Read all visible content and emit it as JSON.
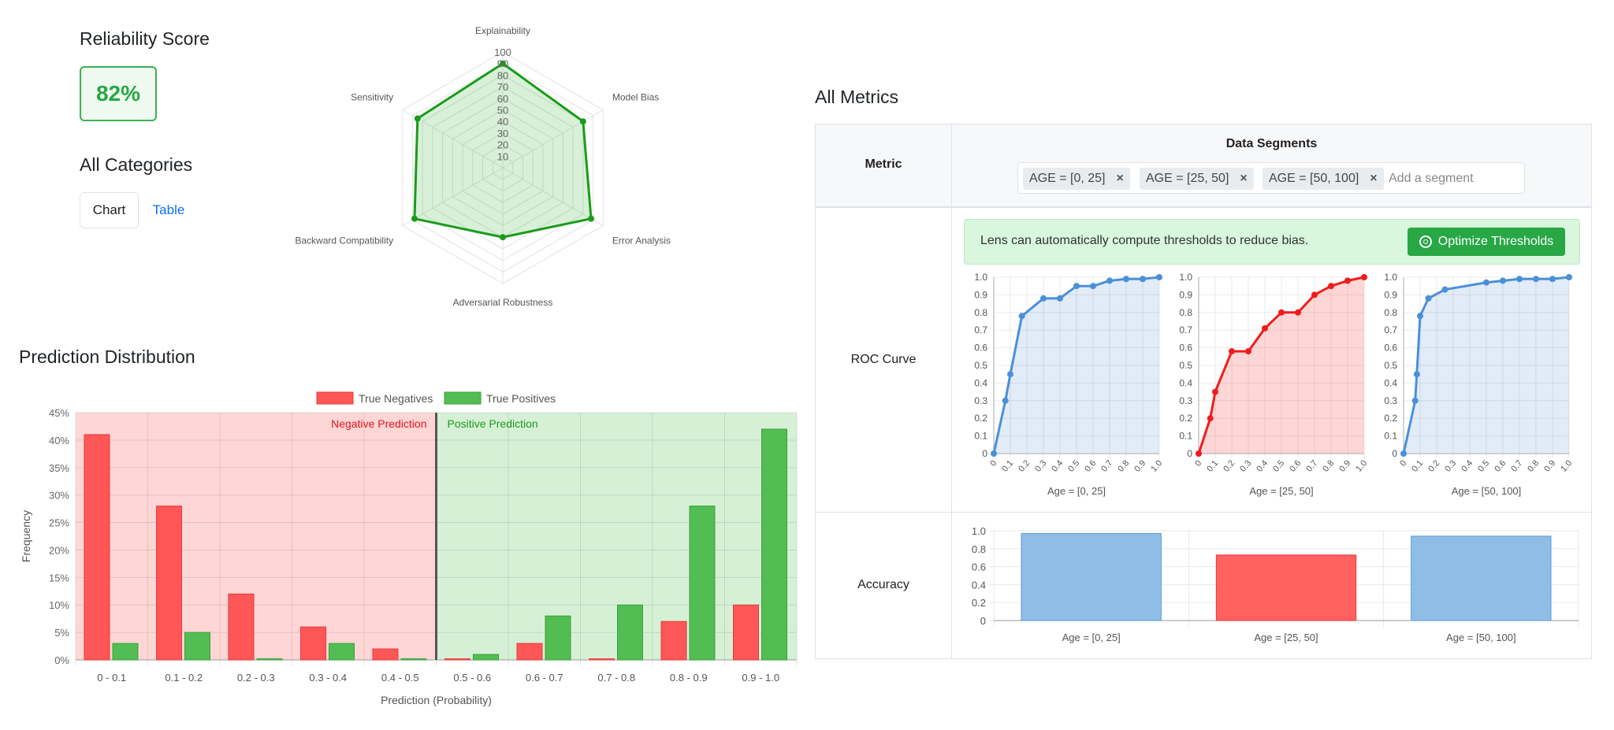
{
  "reliability": {
    "title": "Reliability Score",
    "score": "82%",
    "score_color": "#28a745"
  },
  "categories": {
    "title": "All Categories",
    "tabs": [
      {
        "label": "Chart",
        "active": true
      },
      {
        "label": "Table",
        "active": false
      }
    ]
  },
  "prediction_distribution": {
    "title": "Prediction Distribution"
  },
  "all_metrics": {
    "title": "All Metrics",
    "col_metric": "Metric",
    "col_segments": "Data Segments",
    "segments": [
      "AGE = [0, 25]",
      "AGE = [25, 50]",
      "AGE = [50, 100]"
    ],
    "segment_placeholder": "Add a segment",
    "alert_text": "Lens can automatically compute thresholds to reduce bias.",
    "optimize_label": "Optimize Thresholds",
    "rows": [
      {
        "label": "ROC Curve"
      },
      {
        "label": "Accuracy"
      }
    ]
  },
  "chart_data": [
    {
      "type": "radar",
      "categories": [
        "Explainability",
        "Model Bias",
        "Error Analysis",
        "Adversarial Robustness",
        "Backward Compatibility",
        "Sensitivity"
      ],
      "values": [
        90,
        80,
        88,
        60,
        88,
        85
      ],
      "rlim": [
        0,
        100
      ],
      "ticks": [
        10,
        20,
        30,
        40,
        50,
        60,
        70,
        80,
        90,
        100
      ],
      "color": "#1a9c1a"
    },
    {
      "type": "bar",
      "categories": [
        "0 - 0.1",
        "0.1 - 0.2",
        "0.2 - 0.3",
        "0.3 - 0.4",
        "0.4 - 0.5",
        "0.5 - 0.6",
        "0.6 - 0.7",
        "0.7 - 0.8",
        "0.8 - 0.9",
        "0.9 - 1.0"
      ],
      "series": [
        {
          "name": "True Negatives",
          "values": [
            41,
            28,
            12,
            6,
            2,
            0.2,
            3,
            0.2,
            7,
            10
          ],
          "color": "#ff5757"
        },
        {
          "name": "True Positives",
          "values": [
            3,
            5,
            0.2,
            3,
            0.2,
            1,
            8,
            10,
            28,
            42
          ],
          "color": "#52bd52"
        }
      ],
      "xlabel": "Prediction (Probability)",
      "ylabel": "Frequency",
      "ylim": [
        0,
        45
      ],
      "yticks": [
        "0%",
        "5%",
        "10%",
        "15%",
        "20%",
        "25%",
        "30%",
        "35%",
        "40%",
        "45%"
      ],
      "regions": [
        {
          "label": "Negative Prediction",
          "color": "#e8141c"
        },
        {
          "label": "Positive Prediction",
          "color": "#1a9c1a"
        }
      ],
      "threshold": 0.5,
      "legend": "top"
    },
    {
      "type": "line",
      "title": "Age = [0, 25]",
      "color": "#4a90d9",
      "x": [
        0,
        0.07,
        0.1,
        0.17,
        0.3,
        0.4,
        0.5,
        0.6,
        0.7,
        0.8,
        0.9,
        1.0
      ],
      "y": [
        0,
        0.3,
        0.45,
        0.78,
        0.88,
        0.88,
        0.95,
        0.95,
        0.98,
        0.99,
        0.99,
        1.0
      ],
      "xticks": [
        "0",
        "0.1",
        "0.2",
        "0.3",
        "0.4",
        "0.5",
        "0.6",
        "0.7",
        "0.8",
        "0.9",
        "1.0"
      ],
      "yticks": [
        "0",
        "0.1",
        "0.2",
        "0.3",
        "0.4",
        "0.5",
        "0.6",
        "0.7",
        "0.8",
        "0.9",
        "1.0"
      ],
      "xlim": [
        0,
        1
      ],
      "ylim": [
        0,
        1
      ]
    },
    {
      "type": "line",
      "title": "Age = [25, 50]",
      "color": "#f21b1b",
      "x": [
        0,
        0.07,
        0.1,
        0.2,
        0.3,
        0.4,
        0.5,
        0.6,
        0.7,
        0.8,
        0.9,
        1.0
      ],
      "y": [
        0,
        0.2,
        0.35,
        0.58,
        0.58,
        0.71,
        0.8,
        0.8,
        0.9,
        0.95,
        0.98,
        1.0
      ],
      "xticks": [
        "0",
        "0.1",
        "0.2",
        "0.3",
        "0.4",
        "0.5",
        "0.6",
        "0.7",
        "0.8",
        "0.9",
        "1.0"
      ],
      "yticks": [
        "0",
        "0.1",
        "0.2",
        "0.3",
        "0.4",
        "0.5",
        "0.6",
        "0.7",
        "0.8",
        "0.9",
        "1.0"
      ],
      "xlim": [
        0,
        1
      ],
      "ylim": [
        0,
        1
      ]
    },
    {
      "type": "line",
      "title": "Age = [50, 100]",
      "color": "#4a90d9",
      "x": [
        0,
        0.07,
        0.08,
        0.1,
        0.15,
        0.25,
        0.5,
        0.6,
        0.7,
        0.8,
        0.9,
        1.0
      ],
      "y": [
        0,
        0.3,
        0.45,
        0.78,
        0.88,
        0.93,
        0.97,
        0.98,
        0.99,
        0.99,
        0.99,
        1.0
      ],
      "xticks": [
        "0",
        "0.1",
        "0.2",
        "0.3",
        "0.4",
        "0.5",
        "0.6",
        "0.7",
        "0.8",
        "0.9",
        "1.0"
      ],
      "yticks": [
        "0",
        "0.1",
        "0.2",
        "0.3",
        "0.4",
        "0.5",
        "0.6",
        "0.7",
        "0.8",
        "0.9",
        "1.0"
      ],
      "xlim": [
        0,
        1
      ],
      "ylim": [
        0,
        1
      ]
    },
    {
      "type": "bar",
      "categories": [
        "Age = [0, 25]",
        "Age = [25, 50]",
        "Age = [50, 100]"
      ],
      "values": [
        0.97,
        0.73,
        0.94
      ],
      "colors": [
        "#8fbde6",
        "#ff6060",
        "#8fbde6"
      ],
      "ylim": [
        0,
        1
      ],
      "yticks": [
        "0",
        "0.2",
        "0.4",
        "0.6",
        "0.8",
        "1.0"
      ]
    }
  ]
}
